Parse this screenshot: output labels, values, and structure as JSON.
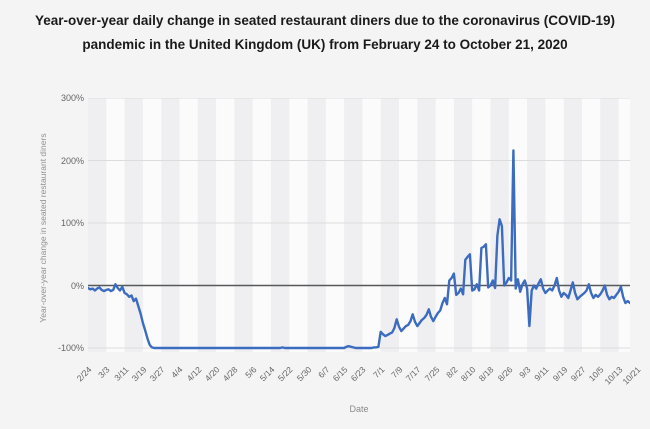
{
  "chart": {
    "title": "Year-over-year daily change in seated restaurant diners due to the coronavirus (COVID-19) pandemic in the United Kingdom (UK) from February 24 to October 21, 2020",
    "y_axis": {
      "label": "Year-over-year change in seated restaurant diners",
      "tick_labels": [
        "300%",
        "200%",
        "100%",
        "0%",
        "-100%"
      ]
    },
    "x_axis": {
      "label": "Date"
    },
    "colors": {
      "line": "#3c6cbf",
      "zero_line": "#57585a",
      "gridline": "#dcdcdd",
      "band": "#efeff1",
      "plot_background": "#fbfbfb",
      "background": "#f4f4f4",
      "tick_text": "#666666",
      "title_text": "#1a1a1a"
    }
  },
  "chart_data": {
    "type": "line",
    "title": "Year-over-year daily change in seated restaurant diners due to the coronavirus (COVID-19) pandemic in the United Kingdom (UK) from February 24 to October 21, 2020",
    "xlabel": "Date",
    "ylabel": "Year-over-year change in seated restaurant diners",
    "x_tick_labels": [
      "2/24",
      "3/3",
      "3/11",
      "3/19",
      "3/27",
      "4/4",
      "4/12",
      "4/20",
      "4/28",
      "5/6",
      "5/14",
      "5/22",
      "5/30",
      "6/7",
      "6/15",
      "6/23",
      "7/1",
      "7/9",
      "7/17",
      "7/25",
      "8/2",
      "8/10",
      "8/18",
      "8/26",
      "9/3",
      "9/11",
      "9/19",
      "9/27",
      "10/5",
      "10/13",
      "10/21"
    ],
    "x_tick_interval_days": 8,
    "x_range": [
      "2/24/2020",
      "10/21/2020"
    ],
    "ylim": [
      -100,
      300
    ],
    "y_ticks_percent": [
      300,
      200,
      100,
      0,
      -100
    ],
    "grid": "horizontal",
    "legend": "none",
    "series": [
      {
        "name": "Year-over-year change in seated restaurant diners (%)",
        "sampling": "daily",
        "values": [
          -4,
          -6,
          -5,
          -8,
          -5,
          -3,
          -7,
          -9,
          -7,
          -6,
          -9,
          -7,
          2,
          -4,
          -8,
          -2,
          -12,
          -14,
          -18,
          -16,
          -25,
          -21,
          -33,
          -45,
          -60,
          -72,
          -85,
          -95,
          -99,
          -100,
          -100,
          -100,
          -100,
          -100,
          -100,
          -100,
          -100,
          -100,
          -100,
          -100,
          -100,
          -100,
          -100,
          -100,
          -100,
          -100,
          -100,
          -100,
          -100,
          -100,
          -100,
          -100,
          -100,
          -100,
          -100,
          -100,
          -100,
          -100,
          -100,
          -100,
          -100,
          -100,
          -100,
          -100,
          -100,
          -100,
          -100,
          -100,
          -100,
          -100,
          -100,
          -100,
          -100,
          -100,
          -100,
          -100,
          -100,
          -100,
          -100,
          -100,
          -100,
          -100,
          -100,
          -100,
          -100,
          -99,
          -100,
          -100,
          -100,
          -100,
          -100,
          -100,
          -100,
          -100,
          -100,
          -100,
          -100,
          -100,
          -100,
          -100,
          -100,
          -100,
          -100,
          -100,
          -100,
          -100,
          -100,
          -100,
          -100,
          -100,
          -100,
          -100,
          -100,
          -98,
          -97,
          -98,
          -99,
          -100,
          -100,
          -100,
          -100,
          -100,
          -100,
          -100,
          -100,
          -99,
          -99,
          -98,
          -74,
          -78,
          -81,
          -79,
          -77,
          -75,
          -68,
          -54,
          -66,
          -73,
          -69,
          -65,
          -63,
          -57,
          -46,
          -58,
          -65,
          -60,
          -55,
          -52,
          -47,
          -38,
          -50,
          -57,
          -50,
          -44,
          -40,
          -28,
          -20,
          -30,
          8,
          12,
          19,
          -15,
          -12,
          -5,
          -14,
          41,
          46,
          50,
          -8,
          -6,
          2,
          -8,
          60,
          62,
          66,
          -3,
          0,
          8,
          -4,
          80,
          106,
          95,
          0,
          5,
          12,
          8,
          216,
          -5,
          10,
          -10,
          2,
          8,
          -5,
          -65,
          -8,
          0,
          -5,
          3,
          10,
          -5,
          -12,
          -8,
          -5,
          -8,
          0,
          12,
          -8,
          -18,
          -12,
          -15,
          -20,
          -8,
          5,
          -12,
          -22,
          -18,
          -15,
          -12,
          -8,
          2,
          -12,
          -20,
          -15,
          -18,
          -14,
          -8,
          0,
          -15,
          -22,
          -18,
          -20,
          -15,
          -10,
          -2,
          -18,
          -28,
          -25,
          -28
        ]
      }
    ]
  }
}
